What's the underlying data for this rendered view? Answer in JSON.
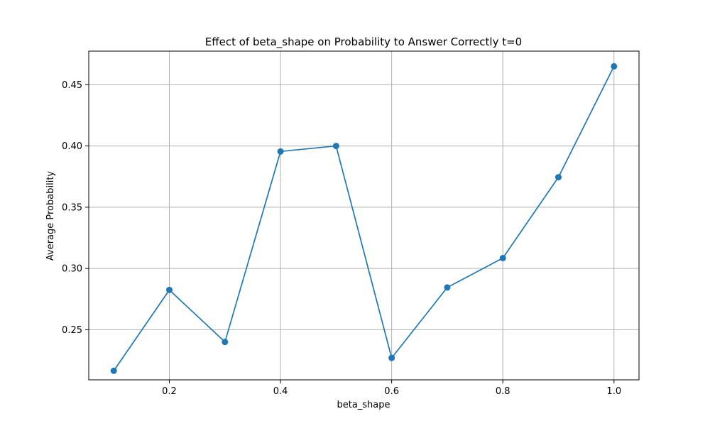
{
  "chart_data": {
    "type": "line",
    "title": "Effect of beta_shape on Probability to Answer Correctly t=0",
    "xlabel": "beta_shape",
    "ylabel": "Average Probability",
    "x": [
      0.1,
      0.2,
      0.3,
      0.4,
      0.5,
      0.6,
      0.7,
      0.8,
      0.9,
      1.0
    ],
    "series": [
      {
        "values": [
          0.2165,
          0.2825,
          0.24,
          0.3955,
          0.4,
          0.227,
          0.2845,
          0.3085,
          0.3745,
          0.465
        ],
        "color": "#1f77b4",
        "marker": "circle"
      }
    ],
    "xlim": [
      0.055,
      1.045
    ],
    "ylim": [
      0.2091,
      0.4774
    ],
    "xticks": [
      0.2,
      0.4,
      0.6,
      0.8,
      1.0
    ],
    "xtick_labels": [
      "0.2",
      "0.4",
      "0.6",
      "0.8",
      "1.0"
    ],
    "yticks": [
      0.25,
      0.3,
      0.35,
      0.4,
      0.45
    ],
    "ytick_labels": [
      "0.25",
      "0.30",
      "0.35",
      "0.40",
      "0.45"
    ],
    "grid": true,
    "grid_color": "#b0b0b0"
  }
}
